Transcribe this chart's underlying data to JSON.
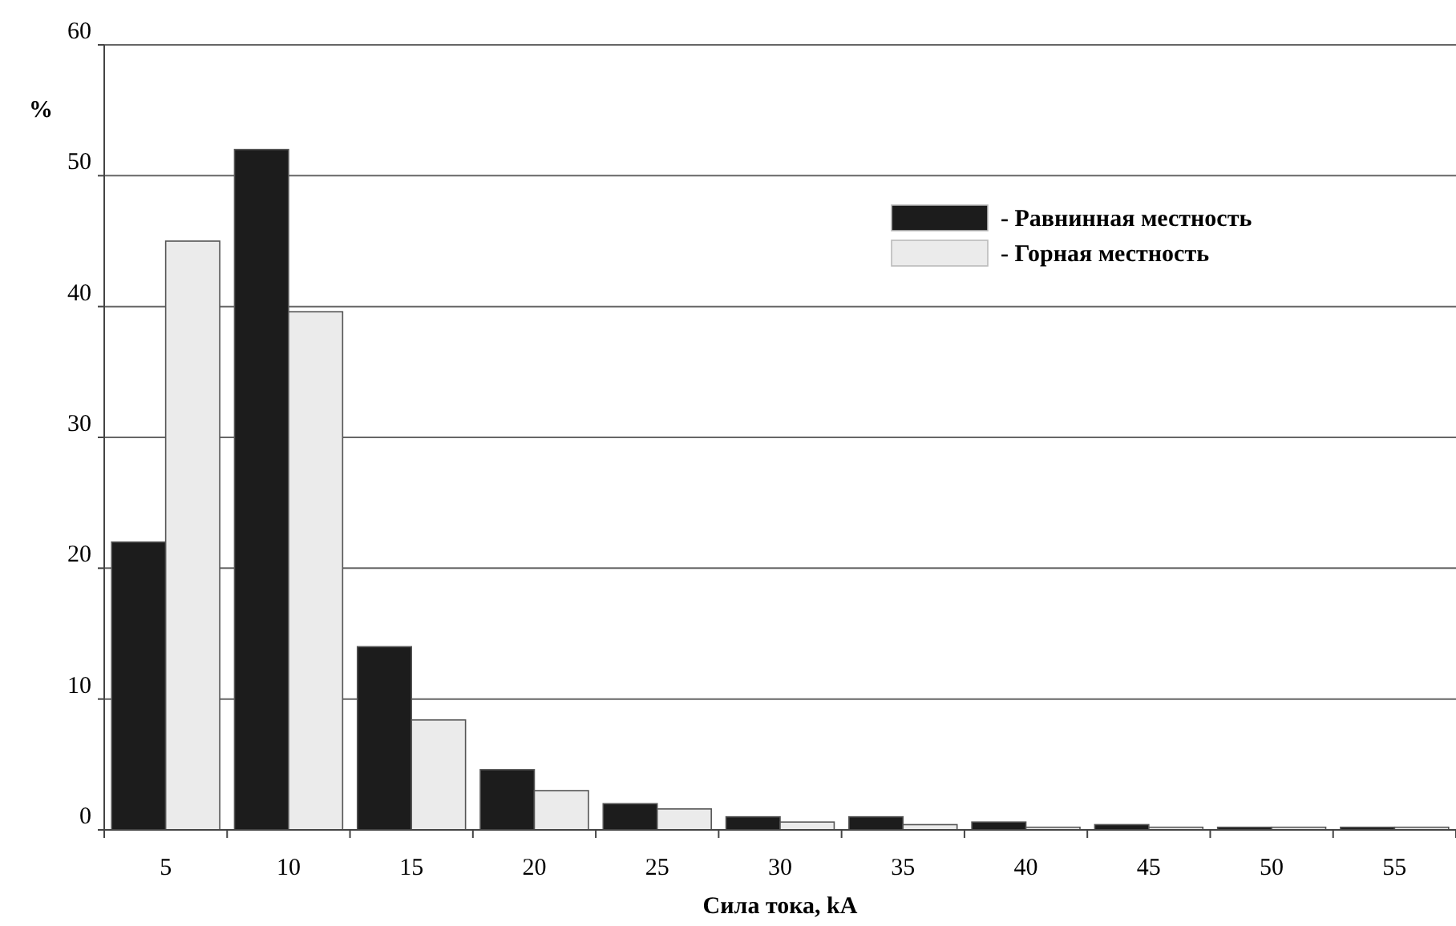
{
  "chart_data": {
    "type": "bar",
    "xlabel": "Сила тока, kA",
    "ylabel": "%",
    "categories": [
      "5",
      "10",
      "15",
      "20",
      "25",
      "30",
      "35",
      "40",
      "45",
      "50",
      "55"
    ],
    "series": [
      {
        "name": "- Равнинная местность",
        "color": "#1c1c1c",
        "values": [
          22,
          52,
          14,
          4.6,
          2,
          1,
          1,
          0.6,
          0.4,
          0.2,
          0.2
        ]
      },
      {
        "name": "- Горная местность",
        "color": "#ebebeb",
        "values": [
          45,
          39.6,
          8.4,
          3,
          1.6,
          0.6,
          0.4,
          0.2,
          0.2,
          0.2,
          0.2
        ]
      }
    ],
    "ylim": [
      0,
      60
    ],
    "yticks": [
      0,
      10,
      20,
      30,
      40,
      50,
      60
    ],
    "grid": "y",
    "legend": "top right"
  }
}
